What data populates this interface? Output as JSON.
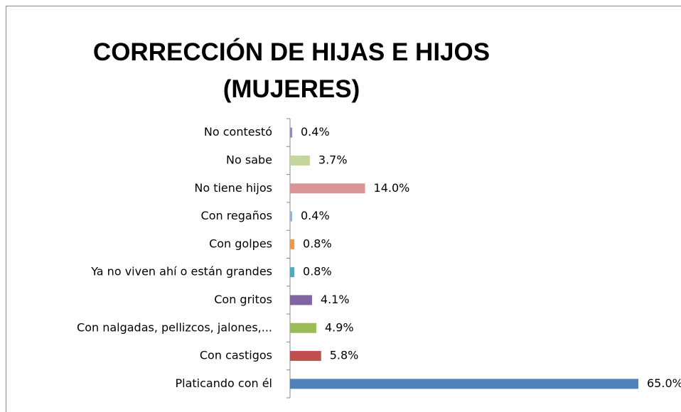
{
  "chart_data": {
    "type": "bar",
    "orientation": "horizontal",
    "title": "CORRECCIÓN DE HIJAS E HIJOS (MUJERES)",
    "categories": [
      "No contestó",
      "No sabe",
      "No tiene hijos",
      "Con regaños",
      "Con golpes",
      "Ya no viven ahí o están grandes",
      "Con gritos",
      "Con nalgadas, pellizcos, jalones,...",
      "Con castigos",
      "Platicando con él"
    ],
    "values": [
      0.4,
      3.7,
      14.0,
      0.4,
      0.8,
      0.8,
      4.1,
      4.9,
      5.8,
      65.0
    ],
    "value_labels": [
      "0.4%",
      "3.7%",
      "14.0%",
      "0.4%",
      "0.8%",
      "0.8%",
      "4.1%",
      "4.9%",
      "5.8%",
      "65.0%"
    ],
    "colors": [
      "#8c8cbf",
      "#c3d69b",
      "#d99694",
      "#95b3d7",
      "#f79646",
      "#4bacc6",
      "#8064a2",
      "#9bbb59",
      "#c0504d",
      "#4f81bd"
    ]
  }
}
